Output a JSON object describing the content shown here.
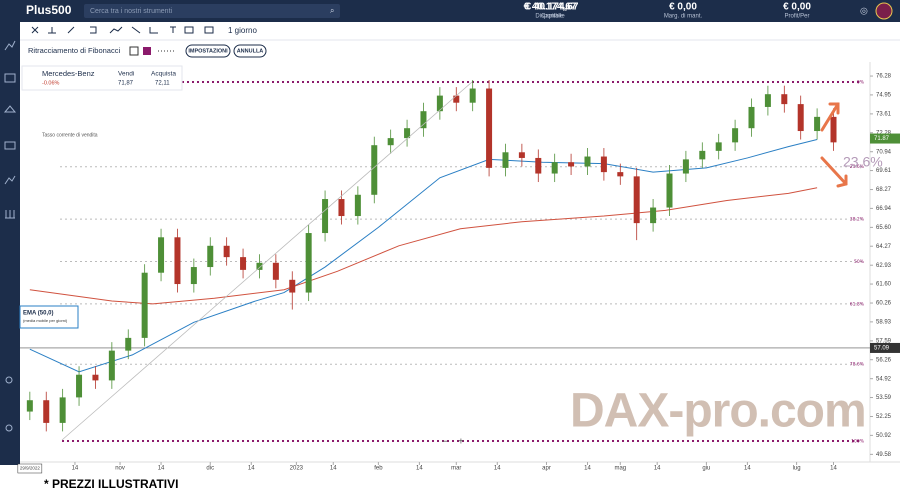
{
  "header": {
    "logo": "Plus500",
    "search": "Cerca tra i nostri strumenti",
    "stats": [
      {
        "value": "€ 40.174,67",
        "label": "Disponibile"
      },
      {
        "value": "€ 40.174,67",
        "label": "Capitale"
      },
      {
        "value": "€ 0,00",
        "label": "Marg. di mant."
      },
      {
        "value": "€ 0,00",
        "label": "Profit/Per"
      }
    ]
  },
  "toolbar": {
    "timeframe": "1 giorno",
    "tool": "Ritracciamento di Fibonacci",
    "settings": "IMPOSTAZIONI",
    "cancel": "ANNULLA"
  },
  "instrument": {
    "name": "Mercedes-Benz",
    "change": "-0.06%",
    "sell_label": "Vendi",
    "sell": "71,87",
    "buy_label": "Acquista",
    "buy": "72,11",
    "note": "Tasso corrente di vendita"
  },
  "indicator": {
    "name": "EMA (50,0)",
    "desc": "(media mobile per giorni)"
  },
  "annotation": "23,6%",
  "watermark": "DAX-pro.com",
  "footer": "* PREZZI ILLUSTRATIVI",
  "chart_data": {
    "type": "candlestick",
    "up_color": "#4e8f37",
    "down_color": "#b3342a",
    "xlim": [
      -2.4,
      204.9
    ],
    "ylim": [
      49.04,
      76.99
    ],
    "start_label": "29/9/2022",
    "xticks": [
      {
        "value": 11,
        "label": "14"
      },
      {
        "value": 22,
        "label": "nov"
      },
      {
        "value": 32,
        "label": "14"
      },
      {
        "value": 44,
        "label": "dic"
      },
      {
        "value": 54,
        "label": "14"
      },
      {
        "value": 65,
        "label": "2023"
      },
      {
        "value": 74,
        "label": "14"
      },
      {
        "value": 85,
        "label": "feb"
      },
      {
        "value": 95,
        "label": "14"
      },
      {
        "value": 104,
        "label": "mar"
      },
      {
        "value": 114,
        "label": "14"
      },
      {
        "value": 126,
        "label": "apr"
      },
      {
        "value": 136,
        "label": "14"
      },
      {
        "value": 144,
        "label": "mag"
      },
      {
        "value": 153,
        "label": "14"
      },
      {
        "value": 165,
        "label": "giu"
      },
      {
        "value": 175,
        "label": "14"
      },
      {
        "value": 187,
        "label": "lug"
      },
      {
        "value": 196,
        "label": "14"
      }
    ],
    "yticks": [
      76.28,
      74.95,
      73.61,
      72.28,
      70.94,
      69.61,
      68.27,
      66.94,
      {
        "value": 65.6,
        "label": "65.60"
      },
      64.27,
      62.93,
      {
        "value": 61.6,
        "label": "61.60"
      },
      60.26,
      58.93,
      57.59,
      56.26,
      54.92,
      53.59,
      52.25,
      50.92,
      49.58
    ],
    "x": [
      0,
      4,
      8,
      12,
      16,
      20,
      24,
      28,
      32,
      36,
      40,
      44,
      48,
      52,
      56,
      60,
      64,
      68,
      72,
      76,
      80,
      84,
      88,
      92,
      96,
      100,
      104,
      108,
      112,
      116,
      120,
      124,
      128,
      132,
      136,
      140,
      144,
      148,
      152,
      156,
      160,
      164,
      168,
      172,
      176,
      180,
      184,
      188,
      192,
      196
    ],
    "candles": [
      [
        52.6,
        54.0,
        52.0,
        53.4
      ],
      [
        53.4,
        54.0,
        51.2,
        51.8
      ],
      [
        51.8,
        54.2,
        51.2,
        53.6
      ],
      [
        53.6,
        55.8,
        53.0,
        55.2
      ],
      [
        55.2,
        55.8,
        54.2,
        54.8
      ],
      [
        54.8,
        57.5,
        54.2,
        56.9
      ],
      [
        56.9,
        58.4,
        56.3,
        57.8
      ],
      [
        57.8,
        63.0,
        57.2,
        62.4
      ],
      [
        62.4,
        65.5,
        61.8,
        64.9
      ],
      [
        64.9,
        65.5,
        61.0,
        61.6
      ],
      [
        61.6,
        63.4,
        61.0,
        62.8
      ],
      [
        62.8,
        64.9,
        62.2,
        64.3
      ],
      [
        64.3,
        64.9,
        62.9,
        63.5
      ],
      [
        63.5,
        64.1,
        62.0,
        62.6
      ],
      [
        62.6,
        63.7,
        62.0,
        63.1
      ],
      [
        63.1,
        63.7,
        61.3,
        61.9
      ],
      [
        61.9,
        62.5,
        59.8,
        61.0
      ],
      [
        61.0,
        65.8,
        60.4,
        65.2
      ],
      [
        65.2,
        68.2,
        64.6,
        67.6
      ],
      [
        67.6,
        68.2,
        65.8,
        66.4
      ],
      [
        66.4,
        68.5,
        65.8,
        67.9
      ],
      [
        67.9,
        72.0,
        67.3,
        71.4
      ],
      [
        71.4,
        72.5,
        70.8,
        71.9
      ],
      [
        71.9,
        73.2,
        71.3,
        72.6
      ],
      [
        72.6,
        74.4,
        72.0,
        73.8
      ],
      [
        73.8,
        75.5,
        73.2,
        74.9
      ],
      [
        74.9,
        75.5,
        73.8,
        74.4
      ],
      [
        74.4,
        76.0,
        73.8,
        75.4
      ],
      [
        75.4,
        76.0,
        69.2,
        69.8
      ],
      [
        69.8,
        71.5,
        69.2,
        70.9
      ],
      [
        70.9,
        71.5,
        69.9,
        70.5
      ],
      [
        70.5,
        71.1,
        68.8,
        69.4
      ],
      [
        69.4,
        70.8,
        68.8,
        70.2
      ],
      [
        70.2,
        70.8,
        69.3,
        69.9
      ],
      [
        69.9,
        71.2,
        69.3,
        70.6
      ],
      [
        70.6,
        71.2,
        68.9,
        69.5
      ],
      [
        69.5,
        70.1,
        68.6,
        69.2
      ],
      [
        69.2,
        69.8,
        64.7,
        65.9
      ],
      [
        65.9,
        67.6,
        65.3,
        67.0
      ],
      [
        67.0,
        70.0,
        66.4,
        69.4
      ],
      [
        69.4,
        71.0,
        68.8,
        70.4
      ],
      [
        70.4,
        71.6,
        69.8,
        71.0
      ],
      [
        71.0,
        72.2,
        70.4,
        71.6
      ],
      [
        71.6,
        73.2,
        71.0,
        72.6
      ],
      [
        72.6,
        74.7,
        72.0,
        74.1
      ],
      [
        74.1,
        75.6,
        73.5,
        75.0
      ],
      [
        75.0,
        75.6,
        73.7,
        74.3
      ],
      [
        74.3,
        74.9,
        71.8,
        72.4
      ],
      [
        72.4,
        74.0,
        71.8,
        73.4
      ],
      [
        73.4,
        74.0,
        71.0,
        71.6
      ]
    ],
    "lines": [
      {
        "color": "#2a7fc4",
        "x": [
          0,
          12,
          25,
          40,
          55,
          62,
          72,
          85,
          100,
          112,
          125,
          140,
          152,
          165,
          175,
          185,
          192
        ],
        "values": [
          57.0,
          55.4,
          56.6,
          58.9,
          60.4,
          61.0,
          62.8,
          65.6,
          69.1,
          70.4,
          70.2,
          70.1,
          69.5,
          69.8,
          70.5,
          71.3,
          71.8
        ]
      },
      {
        "color": "#d0523f",
        "x": [
          0,
          20,
          30,
          45,
          62,
          75,
          90,
          105,
          120,
          140,
          155,
          170,
          185,
          192
        ],
        "values": [
          61.2,
          60.4,
          60.2,
          60.6,
          61.2,
          62.5,
          64.3,
          65.5,
          66.0,
          66.4,
          66.8,
          67.5,
          68.0,
          68.4
        ]
      }
    ],
    "fib_levels": [
      {
        "value": 75.86,
        "label": "0%"
      },
      {
        "value": 69.88,
        "label": "23.6%"
      },
      {
        "value": 66.18,
        "label": "38.2%"
      },
      {
        "value": 63.19,
        "label": "50%"
      },
      {
        "value": 60.2,
        "label": "61.8%"
      },
      {
        "value": 55.94,
        "label": "78.6%"
      },
      {
        "value": 50.52,
        "label": "100%"
      }
    ],
    "last_price": 71.87,
    "cursor_price": 57.09
  }
}
